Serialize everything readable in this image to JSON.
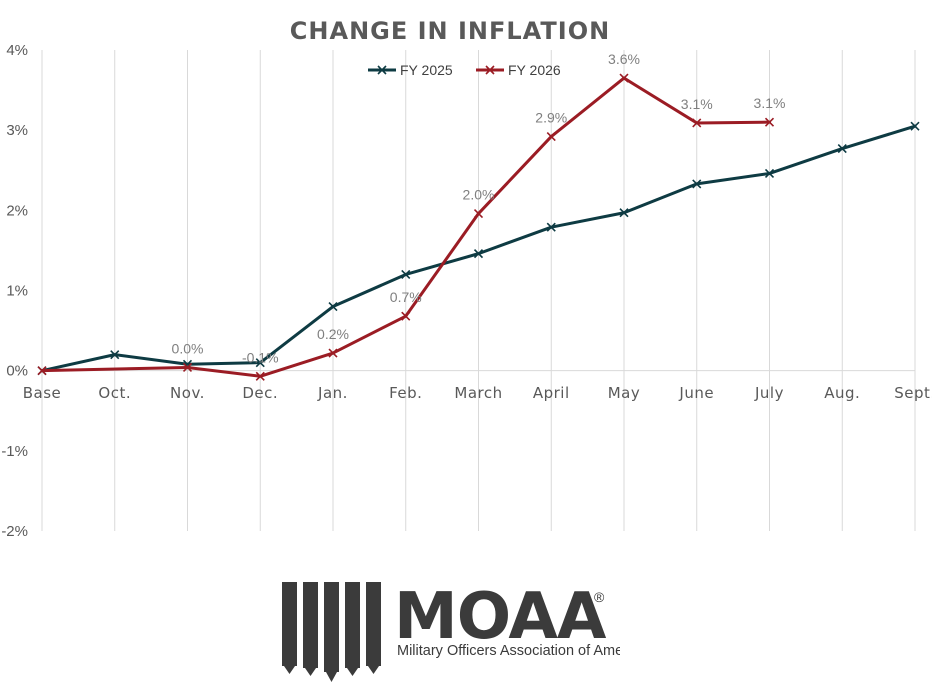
{
  "chart_data": {
    "type": "line",
    "title": "CHANGE IN INFLATION",
    "categories": [
      "Base",
      "Oct.",
      "Nov.",
      "Dec.",
      "Jan.",
      "Feb.",
      "March",
      "April",
      "May",
      "June",
      "July",
      "Aug.",
      "Sept."
    ],
    "ylim": [
      -2,
      4
    ],
    "yticks": [
      -2,
      -1,
      0,
      1,
      2,
      3,
      4
    ],
    "ytick_labels": [
      "-2%",
      "-1%",
      "0%",
      "1%",
      "2%",
      "3%",
      "4%"
    ],
    "grid": "vertical",
    "legend": "top-center",
    "series": [
      {
        "name": "FY 2025",
        "color": "#0e3b43",
        "values": [
          0,
          0.2,
          0.08,
          0.1,
          0.8,
          1.2,
          1.46,
          1.79,
          1.97,
          2.33,
          2.46,
          2.77,
          3.05
        ],
        "labels": []
      },
      {
        "name": "FY 2026",
        "color": "#9b1c24",
        "values": [
          0,
          null,
          0.04,
          -0.07,
          0.22,
          0.68,
          1.96,
          2.92,
          3.65,
          3.09,
          3.1,
          null,
          null
        ],
        "labels": [
          null,
          null,
          "0.0%",
          "-0.1%",
          "0.2%",
          "0.7%",
          "2.0%",
          "2.9%",
          "3.6%",
          "3.1%",
          "3.1%",
          null,
          null
        ]
      }
    ]
  },
  "logo": {
    "wordmark": "MOAA",
    "registered": "®",
    "tagline": "Military Officers Association of America"
  }
}
